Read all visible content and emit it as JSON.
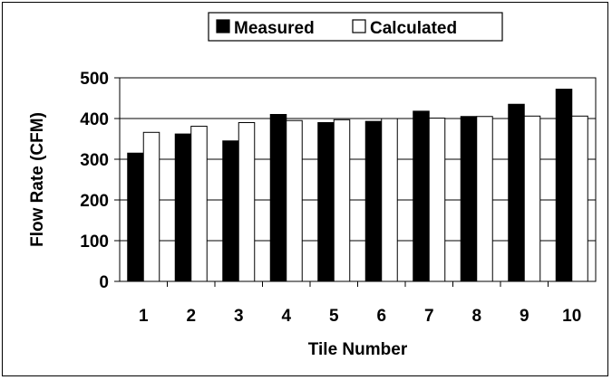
{
  "chart_data": {
    "type": "bar",
    "categories": [
      "1",
      "2",
      "3",
      "4",
      "5",
      "6",
      "7",
      "8",
      "9",
      "10"
    ],
    "series": [
      {
        "name": "Measured",
        "values": [
          315,
          362,
          345,
          410,
          390,
          393,
          418,
          405,
          435,
          472
        ],
        "color": "#000000"
      },
      {
        "name": "Calculated",
        "values": [
          366,
          381,
          390,
          395,
          397,
          400,
          401,
          405,
          406,
          406
        ],
        "color": "#ffffff"
      }
    ],
    "title": "",
    "xlabel": "Tile Number",
    "ylabel": "Flow Rate (CFM)",
    "ylim": [
      0,
      500
    ],
    "yticks": [
      "0",
      "100",
      "200",
      "300",
      "400",
      "500"
    ],
    "grid": true,
    "legend_position": "top"
  }
}
